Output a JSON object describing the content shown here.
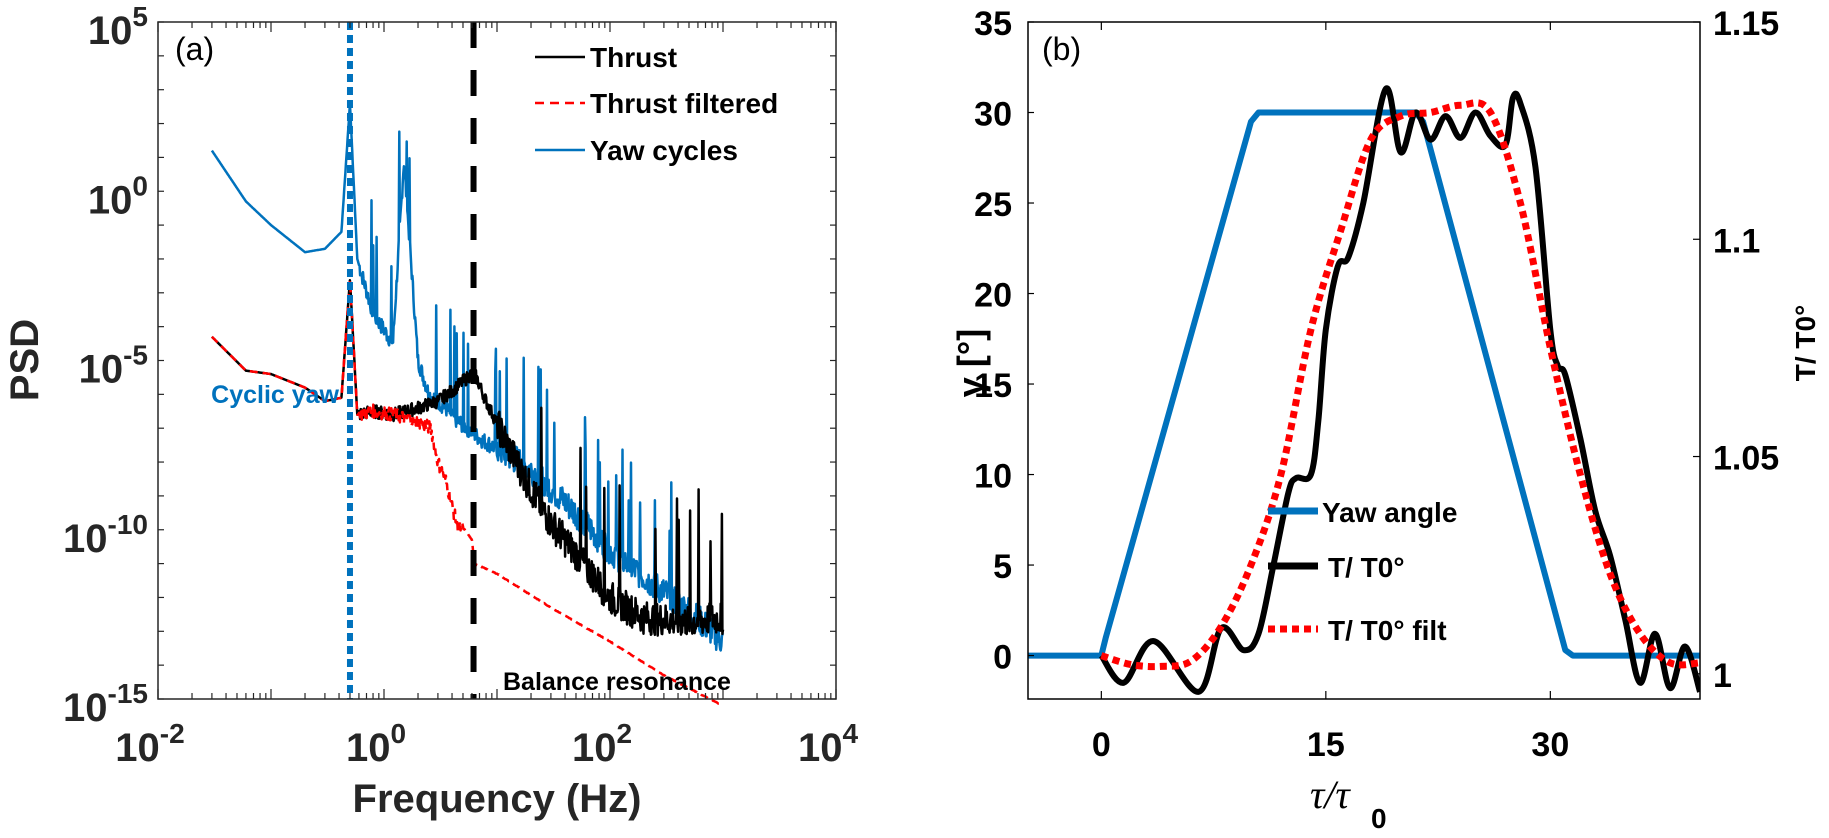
{
  "chart_data": [
    {
      "type": "line",
      "panel_label": "(a)",
      "title": "",
      "xlabel": "Frequency (Hz)",
      "ylabel": "PSD",
      "xscale": "log",
      "yscale": "log",
      "xlim": [
        0.01,
        10000
      ],
      "ylim_label_exponents": [
        5,
        -15
      ],
      "x_tick_labels": [
        {
          "base": "10",
          "exp": "-2",
          "value": 0.01
        },
        {
          "base": "10",
          "exp": "0",
          "value": 1
        },
        {
          "base": "10",
          "exp": "2",
          "value": 100
        },
        {
          "base": "10",
          "exp": "4",
          "value": 10000
        }
      ],
      "y_tick_labels": [
        {
          "base": "10",
          "exp": "5",
          "value": 5
        },
        {
          "base": "10",
          "exp": "0",
          "value": 0
        },
        {
          "base": "10",
          "exp": "-5",
          "value": -5
        },
        {
          "base": "10",
          "exp": "-10",
          "value": -10
        },
        {
          "base": "10",
          "exp": "-15",
          "value": -15
        }
      ],
      "legend": {
        "placement": "top-right",
        "entries": [
          {
            "label": "Thrust",
            "color": "#000000",
            "style": "solid"
          },
          {
            "label": "Thrust filtered",
            "color": "#ff0000",
            "style": "dashed"
          },
          {
            "label": "Yaw cycles",
            "color": "#0072bd",
            "style": "solid"
          }
        ]
      },
      "vertical_lines": [
        {
          "name": "cyclic-yaw-line",
          "x": 0.5,
          "color": "#0072bd",
          "style": "dotted",
          "annotation": "Cyclic yaw"
        },
        {
          "name": "balance-resonance-line",
          "x": 6.2,
          "color": "#000000",
          "style": "dashed",
          "annotation": "Balance resonance"
        }
      ],
      "series": [
        {
          "name": "Yaw cycles",
          "color": "#0072bd",
          "x": [
            0.03,
            0.06,
            0.1,
            0.2,
            0.3,
            0.42,
            0.5,
            0.58,
            0.8,
            1.2,
            1.5,
            2.0,
            2.5,
            3,
            3.5,
            4.5,
            5.5,
            7,
            10,
            20,
            50,
            100,
            200,
            500,
            1000
          ],
          "log10_y": [
            1.2,
            -0.3,
            -1.0,
            -1.8,
            -1.7,
            -1.2,
            2.6,
            -2.0,
            -3.6,
            -4.5,
            0.9,
            -5.0,
            -6.0,
            -6.2,
            -6.4,
            -6.8,
            -7.0,
            -7.3,
            -7.6,
            -8.2,
            -9.5,
            -10.6,
            -11.4,
            -12.4,
            -13.3
          ]
        },
        {
          "name": "Thrust",
          "color": "#000000",
          "x": [
            0.03,
            0.06,
            0.1,
            0.2,
            0.3,
            0.42,
            0.5,
            0.58,
            0.8,
            1.2,
            2,
            3,
            4,
            5.5,
            6.2,
            8,
            12,
            20,
            30,
            50,
            100,
            200,
            500,
            1000
          ],
          "log10_y": [
            -4.3,
            -5.3,
            -5.4,
            -5.8,
            -6.2,
            -6.1,
            -2.6,
            -6.6,
            -6.5,
            -6.6,
            -6.4,
            -6.2,
            -5.9,
            -5.5,
            -5.3,
            -6.2,
            -7.4,
            -8.8,
            -9.8,
            -10.7,
            -12.0,
            -12.6,
            -12.7,
            -12.6
          ]
        },
        {
          "name": "Thrust filtered",
          "color": "#ff0000",
          "x": [
            0.03,
            0.06,
            0.1,
            0.2,
            0.3,
            0.42,
            0.5,
            0.58,
            0.8,
            1.2,
            2,
            2.6,
            3,
            3.5,
            4,
            4.5,
            5.2,
            6.0,
            6.3,
            10,
            30,
            100,
            300,
            1000
          ],
          "log10_y": [
            -4.3,
            -5.3,
            -5.4,
            -5.8,
            -6.2,
            -6.1,
            -2.6,
            -6.6,
            -6.5,
            -6.6,
            -6.8,
            -7.0,
            -8.0,
            -8.5,
            -9.3,
            -9.9,
            -10.0,
            -10.3,
            -11.0,
            -11.3,
            -12.3,
            -13.3,
            -14.3,
            -15.2
          ]
        }
      ]
    },
    {
      "type": "line",
      "panel_label": "(b)",
      "title": "",
      "xlabel": "τ/τ0",
      "xlabel_main": "τ/τ",
      "xlabel_sub": "0",
      "ylabel": "γ [°]",
      "ylabel_right": "T/ T0°",
      "xlim": [
        -4.9,
        40
      ],
      "ylim": [
        -2.4,
        35
      ],
      "ylim_right": [
        0.9942,
        1.15
      ],
      "x_ticks": [
        "0",
        "15",
        "30"
      ],
      "x_tick_values": [
        0,
        15,
        30
      ],
      "y_ticks": [
        "0",
        "5",
        "10",
        "15",
        "20",
        "25",
        "30",
        "35"
      ],
      "y_tick_values": [
        0,
        5,
        10,
        15,
        20,
        25,
        30,
        35
      ],
      "y_right_ticks": [
        "1",
        "1.05",
        "1.1",
        "1.15"
      ],
      "y_right_tick_values": [
        1,
        1.05,
        1.1,
        1.15
      ],
      "legend": {
        "placement": "bottom-center",
        "entries": [
          {
            "label": "Yaw angle",
            "color": "#0072bd",
            "style": "solid"
          },
          {
            "label": "T/ T0°",
            "color": "#000000",
            "style": "solid"
          },
          {
            "label": "T/ T0° filt",
            "color": "#ff0000",
            "style": "dotted"
          }
        ]
      },
      "series": [
        {
          "name": "Yaw angle",
          "axis": "left",
          "color": "#0072bd",
          "x": [
            -4.9,
            0,
            0.3,
            10,
            10.5,
            21,
            21.5,
            31,
            31.5,
            40
          ],
          "y": [
            0,
            0,
            1,
            29.5,
            30,
            30,
            29.5,
            0.3,
            0,
            0
          ]
        },
        {
          "name": "T/ T0°",
          "axis": "left",
          "color": "#000000",
          "x": [
            0,
            1.5,
            3.5,
            6.5,
            8,
            9.5,
            10.5,
            11.5,
            12.5,
            13,
            14,
            14.5,
            15,
            15.8,
            16.5,
            17.5,
            19,
            20,
            21,
            22,
            23,
            24,
            25,
            26,
            27,
            27.5,
            28,
            29,
            30,
            30.5,
            31,
            32,
            33,
            34,
            35,
            36,
            37,
            38,
            39,
            40
          ],
          "y": [
            0,
            -1.5,
            0.8,
            -2.0,
            1.5,
            0.3,
            1.2,
            5,
            9,
            9.8,
            10,
            13,
            18,
            21.5,
            22,
            25,
            31.3,
            27.8,
            30,
            28.5,
            29.8,
            28.6,
            30,
            28.7,
            28.2,
            30.8,
            30.5,
            27,
            18,
            16,
            15.5,
            12,
            8,
            5.5,
            2,
            -1.5,
            1.2,
            -1.8,
            0.5,
            -2
          ]
        },
        {
          "name": "T/ T0° filt",
          "axis": "left",
          "color": "#ff0000",
          "x": [
            0,
            2,
            4,
            6,
            8,
            10,
            12,
            14,
            16,
            18,
            20,
            22,
            24,
            26,
            28,
            30,
            32,
            34,
            36,
            38,
            40
          ],
          "y": [
            0,
            -0.5,
            -0.6,
            -0.3,
            1.6,
            5,
            10,
            18,
            23.5,
            28.5,
            29.8,
            30,
            30.4,
            30,
            25,
            17,
            10,
            4.5,
            1.2,
            -0.4,
            -0.4
          ]
        }
      ]
    }
  ]
}
